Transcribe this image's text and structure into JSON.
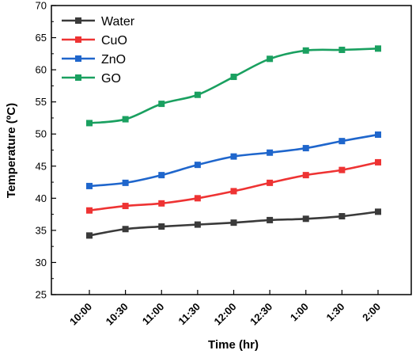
{
  "chart_data": {
    "type": "line",
    "xlabel": "Time (hr)",
    "ylabel": "Temperature (ºC)",
    "categories": [
      "10:00",
      "10:30",
      "11:00",
      "11:30",
      "12:00",
      "12:30",
      "1:00",
      "1:30",
      "2:00"
    ],
    "ylim": [
      25,
      70
    ],
    "yticks": [
      25,
      30,
      35,
      40,
      45,
      50,
      55,
      60,
      65,
      70
    ],
    "legend_position": "top-left",
    "grid": false,
    "marker": "square",
    "series": [
      {
        "name": "Water",
        "color": "#3a3a3a",
        "values": [
          34.2,
          35.2,
          35.6,
          35.9,
          36.2,
          36.6,
          36.8,
          37.2,
          37.9
        ]
      },
      {
        "name": "CuO",
        "color": "#ee3333",
        "values": [
          38.1,
          38.8,
          39.2,
          40.0,
          41.1,
          42.4,
          43.6,
          44.4,
          45.6
        ]
      },
      {
        "name": "ZnO",
        "color": "#1f66cc",
        "values": [
          41.9,
          42.4,
          43.6,
          45.2,
          46.5,
          47.1,
          47.8,
          48.9,
          49.9
        ]
      },
      {
        "name": "GO",
        "color": "#1aa060",
        "values": [
          51.7,
          52.3,
          54.7,
          56.1,
          58.9,
          61.7,
          63.0,
          63.1,
          63.3
        ]
      }
    ]
  }
}
